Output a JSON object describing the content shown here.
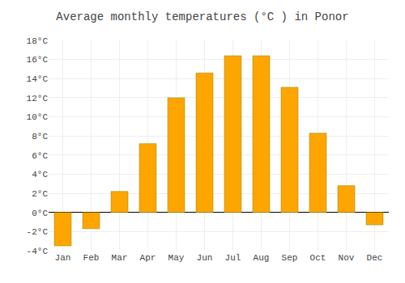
{
  "chart_data": {
    "type": "bar",
    "title": "Average monthly temperatures (°C ) in Ponor",
    "categories": [
      "Jan",
      "Feb",
      "Mar",
      "Apr",
      "May",
      "Jun",
      "Jul",
      "Aug",
      "Sep",
      "Oct",
      "Nov",
      "Dec"
    ],
    "values": [
      -3.5,
      -1.7,
      2.2,
      7.2,
      12.0,
      14.6,
      16.4,
      16.4,
      13.1,
      8.3,
      2.8,
      -1.3
    ],
    "color": "#FFA500",
    "ylim": [
      -4,
      18
    ],
    "yticks": [
      {
        "value": -4,
        "label": "-4°C"
      },
      {
        "value": -2,
        "label": "-2°C"
      },
      {
        "value": 0,
        "label": "0°C"
      },
      {
        "value": 2,
        "label": "2°C"
      },
      {
        "value": 4,
        "label": "4°C"
      },
      {
        "value": 6,
        "label": "6°C"
      },
      {
        "value": 8,
        "label": "8°C"
      },
      {
        "value": 10,
        "label": "10°C"
      },
      {
        "value": 12,
        "label": "12°C"
      },
      {
        "value": 14,
        "label": "14°C"
      },
      {
        "value": 16,
        "label": "16°C"
      },
      {
        "value": 18,
        "label": "18°C"
      }
    ],
    "grid": true
  }
}
